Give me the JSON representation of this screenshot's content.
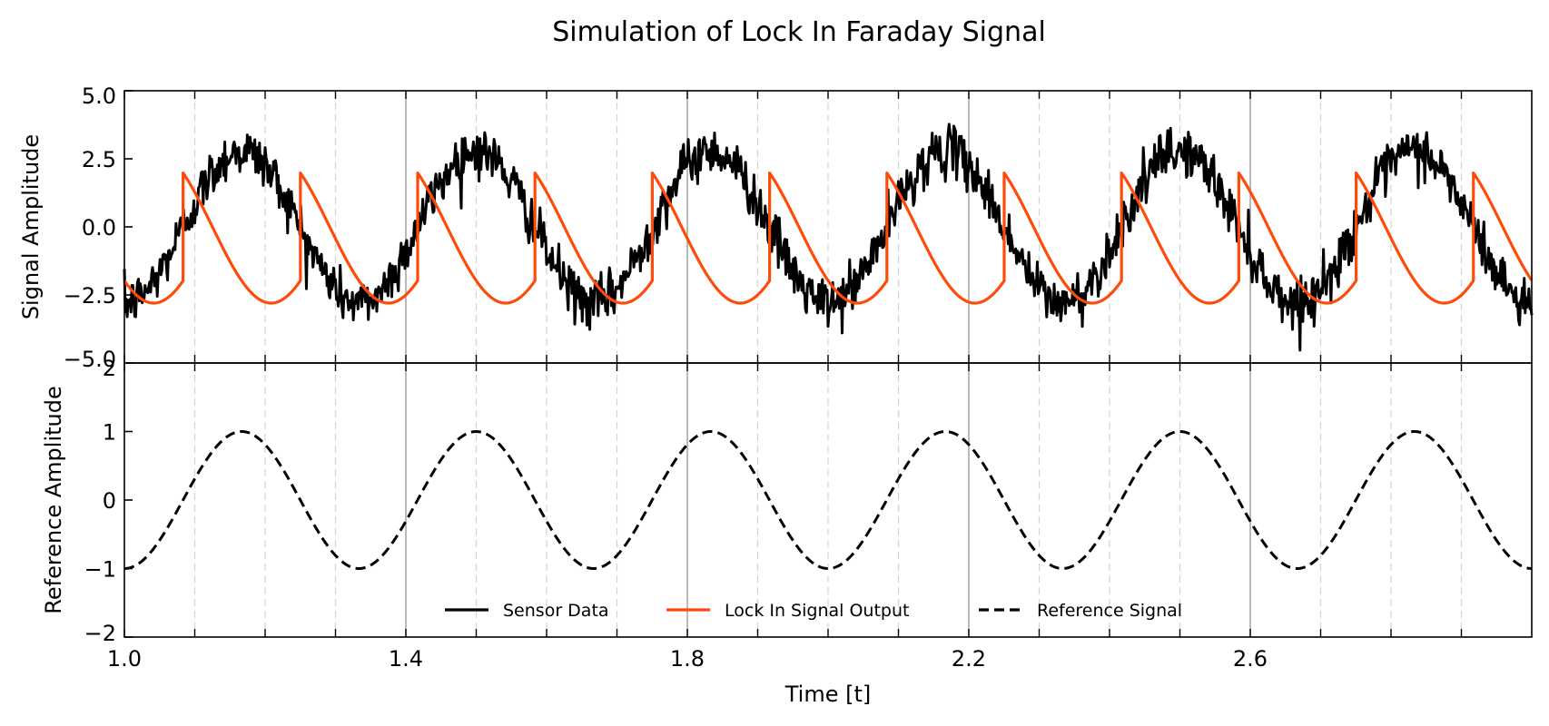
{
  "chart_data": {
    "type": "line",
    "title": "Simulation of Lock In Faraday Signal",
    "xlabel": "Time [t]",
    "xlim": [
      1.0,
      3.0
    ],
    "x_ticks": [
      1.0,
      1.4,
      1.8,
      2.2,
      2.6
    ],
    "x_tick_labels": [
      "1.0",
      "1.4",
      "1.8",
      "2.2",
      "2.6"
    ],
    "x_major_grid": [
      1.4,
      1.8,
      2.2,
      2.6
    ],
    "x_minor_grid": [
      1.1,
      1.2,
      1.3,
      1.5,
      1.6,
      1.7,
      1.9,
      2.0,
      2.1,
      2.3,
      2.4,
      2.5,
      2.7,
      2.8,
      2.9
    ],
    "panels": [
      {
        "ylabel": "Signal Amplitude",
        "ylim": [
          -5.0,
          5.0
        ],
        "y_ticks": [
          5.0,
          2.5,
          0.0,
          -2.5,
          -5.0
        ],
        "y_tick_labels": [
          "5.0",
          "2.5",
          "0.0",
          "−2.5",
          "−5.0"
        ],
        "series": [
          {
            "name": "Sensor Data",
            "color": "#000000",
            "style": "solid",
            "generator": "noisy_sine",
            "amplitude": 2.8,
            "frequency": 3.0,
            "phase_deg": -90,
            "noise_amplitude": 0.45
          },
          {
            "name": "Lock In Signal Output",
            "color": "#ff4b0a",
            "style": "solid",
            "generator": "resetting_sine",
            "amplitude": 2.8,
            "frequency": 3.0,
            "phase_deg": 135,
            "reset_period": 0.1667,
            "reset_start": 0.9167
          }
        ]
      },
      {
        "ylabel": "Reference Amplitude",
        "ylim": [
          -2,
          2
        ],
        "y_ticks": [
          2,
          1,
          0,
          -1,
          -2
        ],
        "y_tick_labels": [
          "2",
          "1",
          "0",
          "−1",
          "−2"
        ],
        "series": [
          {
            "name": "Reference Signal",
            "color": "#000000",
            "style": "dashed",
            "generator": "sine",
            "amplitude": 1.0,
            "frequency": 3.0,
            "phase_deg": -90
          }
        ]
      }
    ],
    "legend": {
      "placement": "lower-center",
      "entries": [
        {
          "label": "Sensor Data",
          "color": "#000000",
          "style": "solid"
        },
        {
          "label": "Lock In Signal Output",
          "color": "#ff4b0a",
          "style": "solid"
        },
        {
          "label": "Reference Signal",
          "color": "#000000",
          "style": "dashed"
        }
      ]
    }
  }
}
